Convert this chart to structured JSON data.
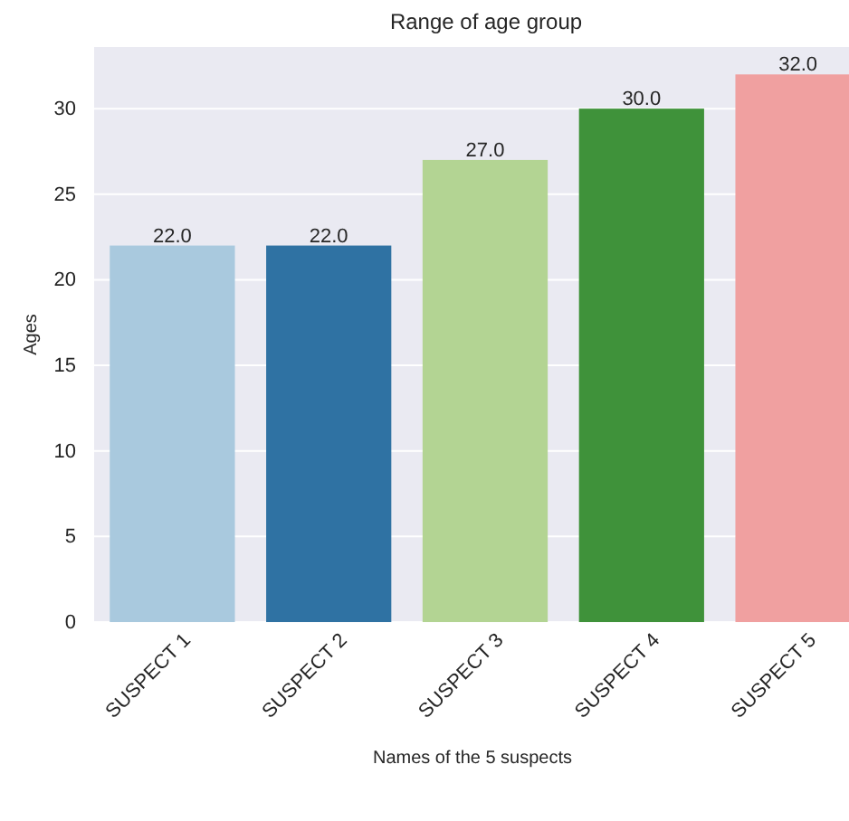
{
  "chart_data": {
    "type": "bar",
    "title": "Range of age group",
    "xlabel": "Names of the 5 suspects",
    "ylabel": "Ages",
    "categories": [
      "SUSPECT 1",
      "SUSPECT 2",
      "SUSPECT 3",
      "SUSPECT 4",
      "SUSPECT 5"
    ],
    "values": [
      22,
      22,
      27,
      30,
      32
    ],
    "colors": [
      "#a9c9de",
      "#2f72a3",
      "#b3d493",
      "#3f923a",
      "#f0a0a0"
    ],
    "value_labels": [
      "22.0",
      "22.0",
      "27.0",
      "30.0",
      "32.0"
    ],
    "ylim": [
      0,
      33.6
    ],
    "yticks": [
      0,
      5,
      10,
      15,
      20,
      25,
      30
    ],
    "grid": "y"
  }
}
